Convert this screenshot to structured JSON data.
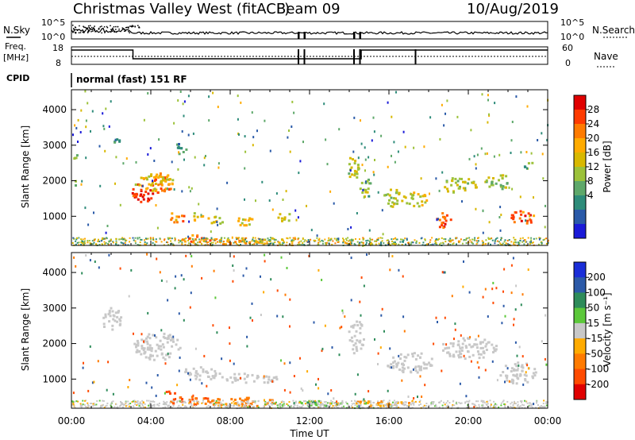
{
  "header": {
    "title": "Christmas Valley West (fitACF)",
    "beam": "Beam 09",
    "date": "10/Aug/2019"
  },
  "labels": {
    "nsky": "N.Sky",
    "nsearch": "N.Search",
    "freq_line1": "Freq.",
    "freq_line2": "[MHz]",
    "nave": "Nave",
    "cpid": "CPID",
    "cpid_text": "normal (fast) 151 RF",
    "ylabel": "Slant Range [km]",
    "xlabel": "Time UT",
    "power_label": "Power [dB]",
    "velocity_label": "Velocity [m s⁻¹]"
  },
  "chart_data": [
    {
      "type": "line",
      "name": "noise-panel",
      "y_left_ticks": [
        "10^5",
        "10^0"
      ],
      "y_right_ticks": [
        "10^5",
        "10^0"
      ]
    },
    {
      "type": "line",
      "name": "frequency-nave-panel",
      "y_left_ticks": [
        18,
        8
      ],
      "y_right_ticks": [
        60,
        0
      ],
      "freq_steps": [
        {
          "from": 0,
          "to": 3.1,
          "level": "high"
        },
        {
          "from": 3.1,
          "to": 14.6,
          "level": "low"
        },
        {
          "from": 14.6,
          "to": 24,
          "level": "high"
        }
      ]
    },
    {
      "type": "heatmap",
      "name": "power",
      "x_ticks": [
        "00:00",
        "04:00",
        "08:00",
        "12:00",
        "16:00",
        "20:00",
        "00:00"
      ],
      "xlim_hours": [
        0,
        24
      ],
      "ylim": [
        180,
        4560
      ],
      "y_ticks": [
        1000,
        2000,
        3000,
        4000
      ],
      "colorbar": {
        "label": "Power [dB]",
        "ticks": [
          28,
          24,
          20,
          16,
          12,
          8,
          4
        ],
        "colors": [
          "#e00000",
          "#ff3b00",
          "#ff7b00",
          "#ffab00",
          "#d8b800",
          "#9cc23a",
          "#5ea86a",
          "#2e8c7a",
          "#2a5aa8",
          "#1a1ad8"
        ]
      },
      "blobs": [
        {
          "t": 0.2,
          "r": 2700,
          "rt": 0.15,
          "rr": 120,
          "v": 14
        },
        {
          "t": 0.2,
          "r": 1950,
          "rt": 0.1,
          "rr": 100,
          "v": 10
        },
        {
          "t": 2.2,
          "r": 3100,
          "rt": 0.25,
          "rr": 150,
          "v": 8
        },
        {
          "t": 3.5,
          "r": 1700,
          "rt": 0.6,
          "rr": 280,
          "v": 27
        },
        {
          "t": 4.5,
          "r": 1950,
          "rt": 0.5,
          "rr": 350,
          "v": 24
        },
        {
          "t": 4.1,
          "r": 2000,
          "rt": 1.0,
          "rr": 260,
          "v": 18
        },
        {
          "t": 5.5,
          "r": 2950,
          "rt": 0.3,
          "rr": 200,
          "v": 8
        },
        {
          "t": 5.3,
          "r": 1000,
          "rt": 0.4,
          "rr": 180,
          "v": 22
        },
        {
          "t": 6.3,
          "r": 1000,
          "rt": 0.3,
          "rr": 150,
          "v": 18
        },
        {
          "t": 7.2,
          "r": 900,
          "rt": 0.4,
          "rr": 150,
          "v": 16
        },
        {
          "t": 8.7,
          "r": 900,
          "rt": 0.5,
          "rr": 150,
          "v": 17
        },
        {
          "t": 10.7,
          "r": 1000,
          "rt": 0.4,
          "rr": 130,
          "v": 14
        },
        {
          "t": 6.2,
          "r": 380,
          "rt": 0.8,
          "rr": 120,
          "v": 24
        },
        {
          "t": 8.0,
          "r": 330,
          "rt": 1.0,
          "rr": 100,
          "v": 22
        },
        {
          "t": 10.0,
          "r": 320,
          "rt": 0.8,
          "rr": 100,
          "v": 18
        },
        {
          "t": 14.2,
          "r": 2400,
          "rt": 0.3,
          "rr": 400,
          "v": 14
        },
        {
          "t": 14.8,
          "r": 1800,
          "rt": 0.3,
          "rr": 300,
          "v": 12
        },
        {
          "t": 16.2,
          "r": 1550,
          "rt": 0.6,
          "rr": 250,
          "v": 14
        },
        {
          "t": 17.3,
          "r": 1500,
          "rt": 0.6,
          "rr": 200,
          "v": 16
        },
        {
          "t": 18.7,
          "r": 900,
          "rt": 0.5,
          "rr": 220,
          "v": 26
        },
        {
          "t": 19.5,
          "r": 1900,
          "rt": 0.9,
          "rr": 220,
          "v": 14
        },
        {
          "t": 21.5,
          "r": 2000,
          "rt": 0.7,
          "rr": 230,
          "v": 13
        },
        {
          "t": 22.7,
          "r": 1000,
          "rt": 0.6,
          "rr": 220,
          "v": 25
        },
        {
          "t": 23.0,
          "r": 2450,
          "rt": 0.3,
          "rr": 100,
          "v": 10
        }
      ]
    },
    {
      "type": "heatmap",
      "name": "velocity",
      "x_ticks": [
        "00:00",
        "04:00",
        "08:00",
        "12:00",
        "16:00",
        "20:00",
        "00:00"
      ],
      "xlim_hours": [
        0,
        24
      ],
      "ylim": [
        180,
        4560
      ],
      "y_ticks": [
        1000,
        2000,
        3000,
        4000
      ],
      "colorbar": {
        "label": "Velocity [m s⁻¹]",
        "ticks": [
          200,
          100,
          50,
          15,
          -15,
          -50,
          -100,
          -200
        ],
        "colors": [
          "#1a2ed8",
          "#2c5aa8",
          "#2e8c5a",
          "#5cc83a",
          "#c8c8c8",
          "#ffab00",
          "#ff7b00",
          "#ff4b00",
          "#e00000"
        ]
      },
      "blobs": [
        {
          "t": 2.0,
          "r": 2700,
          "rt": 0.5,
          "rr": 350,
          "v": 0
        },
        {
          "t": 4.3,
          "r": 1950,
          "rt": 1.2,
          "rr": 400,
          "v": 0
        },
        {
          "t": 6.5,
          "r": 1200,
          "rt": 1.0,
          "rr": 200,
          "v": 0
        },
        {
          "t": 9.0,
          "r": 1050,
          "rt": 1.5,
          "rr": 150,
          "v": 0
        },
        {
          "t": 14.3,
          "r": 2200,
          "rt": 0.4,
          "rr": 500,
          "v": 0
        },
        {
          "t": 17.0,
          "r": 1500,
          "rt": 1.2,
          "rr": 300,
          "v": 0
        },
        {
          "t": 20.0,
          "r": 1900,
          "rt": 1.5,
          "rr": 300,
          "v": 0
        },
        {
          "t": 22.5,
          "r": 1200,
          "rt": 1.0,
          "rr": 300,
          "v": 0
        },
        {
          "t": 6.0,
          "r": 420,
          "rt": 1.2,
          "rr": 120,
          "v": -75
        },
        {
          "t": 8.5,
          "r": 380,
          "rt": 1.8,
          "rr": 130,
          "v": -45
        },
        {
          "t": 12.5,
          "r": 350,
          "rt": 1.2,
          "rr": 90,
          "v": 30
        },
        {
          "t": 15.5,
          "r": 350,
          "rt": 1.5,
          "rr": 90,
          "v": -30
        },
        {
          "t": 5.0,
          "r": 650,
          "rt": 0.3,
          "rr": 80,
          "v": -150
        }
      ]
    }
  ]
}
